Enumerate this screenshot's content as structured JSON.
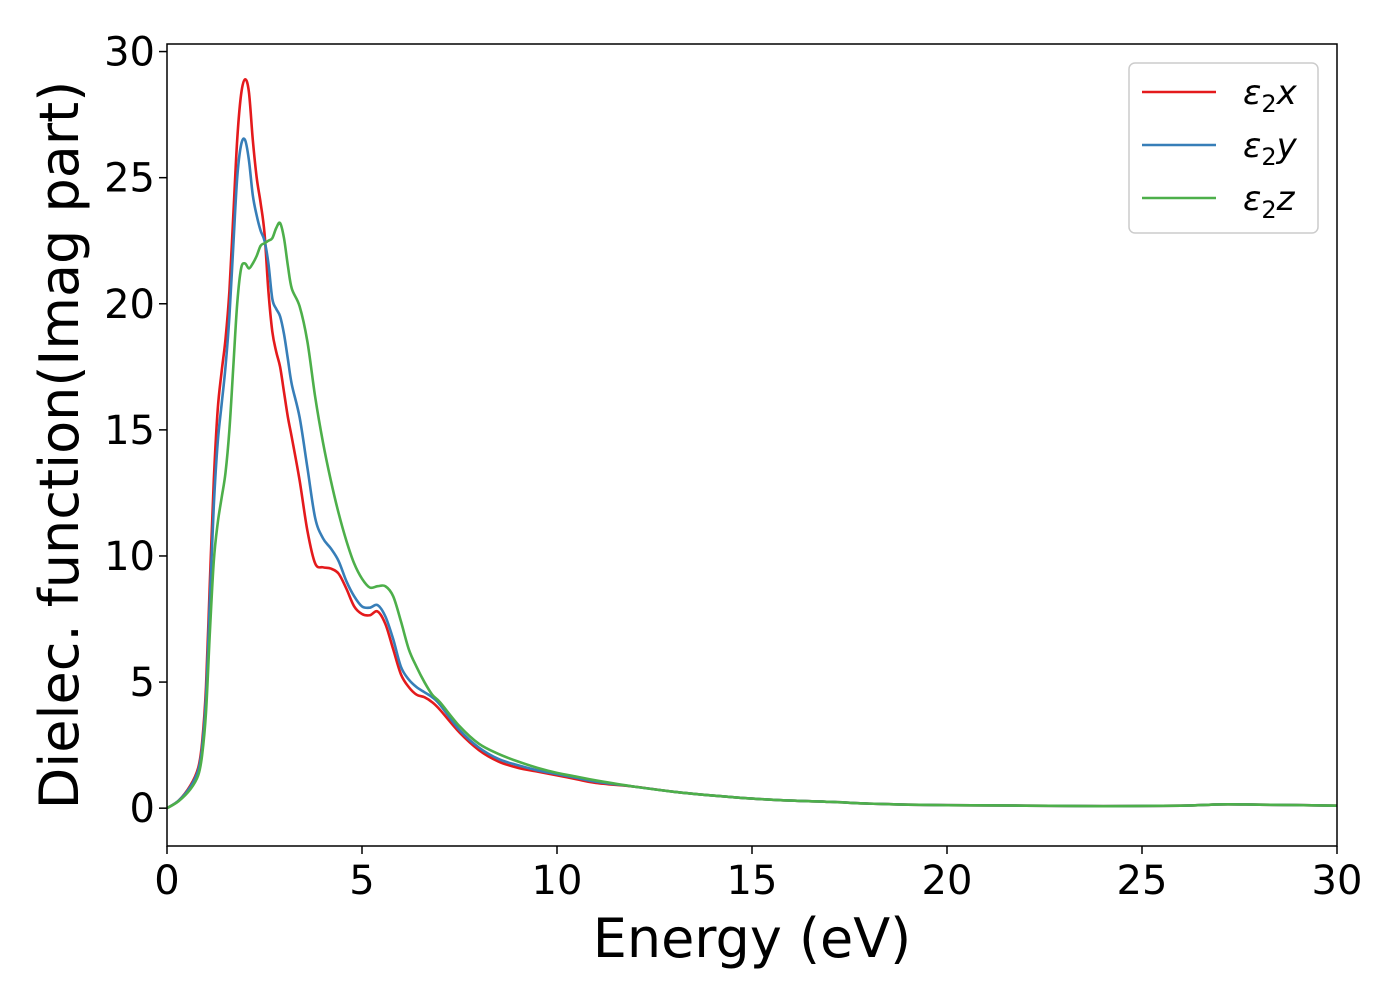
{
  "chart_data": {
    "type": "line",
    "title": "",
    "xlabel": "Energy (eV)",
    "ylabel": "Dielec. function(Imag part)",
    "xlim": [
      0,
      30
    ],
    "ylim": [
      -1.5,
      30.3
    ],
    "xticks": [
      0,
      5,
      10,
      15,
      20,
      25,
      30
    ],
    "yticks": [
      0,
      5,
      10,
      15,
      20,
      25,
      30
    ],
    "grid": false,
    "legend_position": "top-right",
    "series": [
      {
        "name": "ε₂x",
        "legend_base": "ε",
        "legend_sub": "2",
        "legend_tail": "x",
        "color": "#e41a1c",
        "x": [
          0,
          0.3,
          0.6,
          0.8,
          0.9,
          1.0,
          1.1,
          1.2,
          1.3,
          1.4,
          1.5,
          1.6,
          1.7,
          1.8,
          1.9,
          2.0,
          2.1,
          2.2,
          2.3,
          2.4,
          2.5,
          2.6,
          2.7,
          2.8,
          2.9,
          3.0,
          3.1,
          3.2,
          3.4,
          3.6,
          3.8,
          4.0,
          4.2,
          4.4,
          4.6,
          4.8,
          5.0,
          5.2,
          5.4,
          5.6,
          5.8,
          6.0,
          6.2,
          6.4,
          6.6,
          6.8,
          7.0,
          7.5,
          8.0,
          8.5,
          9.0,
          9.5,
          10.0,
          10.5,
          11.0,
          12.0,
          13.0,
          14.0,
          15.0,
          16.0,
          17.0,
          18.0,
          19.0,
          20.0,
          22.0,
          24.0,
          26.0,
          27.0,
          28.0,
          30.0
        ],
        "y": [
          0,
          0.3,
          0.9,
          1.6,
          2.6,
          4.8,
          9.0,
          13.0,
          15.8,
          17.3,
          18.6,
          20.5,
          23.5,
          26.5,
          28.3,
          28.9,
          28.4,
          26.5,
          25.0,
          24.0,
          22.8,
          20.5,
          18.9,
          18.1,
          17.5,
          16.5,
          15.5,
          14.7,
          13.0,
          11.0,
          9.7,
          9.55,
          9.5,
          9.3,
          8.7,
          8.0,
          7.7,
          7.65,
          7.8,
          7.3,
          6.3,
          5.3,
          4.8,
          4.5,
          4.4,
          4.2,
          3.9,
          3.0,
          2.3,
          1.85,
          1.6,
          1.45,
          1.3,
          1.15,
          1.0,
          0.85,
          0.65,
          0.5,
          0.38,
          0.3,
          0.25,
          0.18,
          0.14,
          0.12,
          0.1,
          0.08,
          0.1,
          0.15,
          0.14,
          0.1
        ]
      },
      {
        "name": "ε₂y",
        "legend_base": "ε",
        "legend_sub": "2",
        "legend_tail": "y",
        "color": "#377eb8",
        "x": [
          0,
          0.3,
          0.6,
          0.8,
          0.9,
          1.0,
          1.1,
          1.2,
          1.3,
          1.4,
          1.5,
          1.6,
          1.7,
          1.8,
          1.9,
          2.0,
          2.1,
          2.2,
          2.3,
          2.4,
          2.5,
          2.6,
          2.7,
          2.8,
          2.9,
          3.0,
          3.1,
          3.2,
          3.4,
          3.6,
          3.8,
          4.0,
          4.2,
          4.4,
          4.6,
          4.8,
          5.0,
          5.2,
          5.4,
          5.6,
          5.8,
          6.0,
          6.2,
          6.4,
          6.6,
          6.8,
          7.0,
          7.5,
          8.0,
          8.5,
          9.0,
          9.5,
          10.0,
          10.5,
          11.0,
          12.0,
          13.0,
          14.0,
          15.0,
          16.0,
          17.0,
          18.0,
          19.0,
          20.0,
          22.0,
          24.0,
          26.0,
          27.0,
          28.0,
          30.0
        ],
        "y": [
          0,
          0.3,
          0.85,
          1.5,
          2.4,
          4.4,
          8.3,
          12.0,
          14.5,
          16.0,
          17.5,
          19.5,
          22.3,
          25.0,
          26.3,
          26.5,
          25.7,
          24.3,
          23.5,
          22.9,
          22.5,
          21.6,
          20.2,
          19.8,
          19.5,
          18.8,
          17.8,
          16.8,
          15.5,
          13.5,
          11.5,
          10.7,
          10.3,
          9.8,
          9.0,
          8.4,
          8.0,
          7.95,
          8.05,
          7.6,
          6.7,
          5.6,
          5.1,
          4.8,
          4.6,
          4.4,
          4.1,
          3.1,
          2.4,
          1.95,
          1.7,
          1.5,
          1.35,
          1.2,
          1.05,
          0.85,
          0.65,
          0.5,
          0.38,
          0.3,
          0.25,
          0.18,
          0.14,
          0.12,
          0.1,
          0.08,
          0.1,
          0.15,
          0.14,
          0.1
        ]
      },
      {
        "name": "ε₂z",
        "legend_base": "ε",
        "legend_sub": "2",
        "legend_tail": "z",
        "color": "#4daf4a",
        "x": [
          0,
          0.3,
          0.6,
          0.8,
          0.9,
          1.0,
          1.1,
          1.2,
          1.3,
          1.4,
          1.5,
          1.6,
          1.7,
          1.8,
          1.9,
          2.0,
          2.1,
          2.2,
          2.3,
          2.4,
          2.5,
          2.6,
          2.7,
          2.8,
          2.9,
          3.0,
          3.1,
          3.2,
          3.4,
          3.6,
          3.8,
          4.0,
          4.2,
          4.4,
          4.6,
          4.8,
          5.0,
          5.2,
          5.4,
          5.6,
          5.8,
          6.0,
          6.2,
          6.4,
          6.6,
          6.8,
          7.0,
          7.5,
          8.0,
          8.5,
          9.0,
          9.5,
          10.0,
          10.5,
          11.0,
          12.0,
          13.0,
          14.0,
          15.0,
          16.0,
          17.0,
          18.0,
          19.0,
          20.0,
          22.0,
          24.0,
          26.0,
          27.0,
          28.0,
          30.0
        ],
        "y": [
          0,
          0.28,
          0.75,
          1.3,
          2.1,
          3.8,
          7.0,
          9.8,
          11.3,
          12.3,
          13.3,
          15.0,
          17.5,
          20.0,
          21.4,
          21.6,
          21.4,
          21.6,
          21.9,
          22.3,
          22.4,
          22.5,
          22.6,
          23.0,
          23.2,
          22.6,
          21.5,
          20.6,
          19.9,
          18.5,
          16.3,
          14.5,
          13.0,
          11.7,
          10.6,
          9.7,
          9.1,
          8.75,
          8.8,
          8.8,
          8.4,
          7.4,
          6.3,
          5.6,
          5.0,
          4.5,
          4.2,
          3.25,
          2.55,
          2.15,
          1.85,
          1.6,
          1.4,
          1.25,
          1.1,
          0.85,
          0.65,
          0.5,
          0.38,
          0.3,
          0.25,
          0.18,
          0.14,
          0.12,
          0.1,
          0.08,
          0.1,
          0.15,
          0.14,
          0.1
        ]
      }
    ]
  }
}
